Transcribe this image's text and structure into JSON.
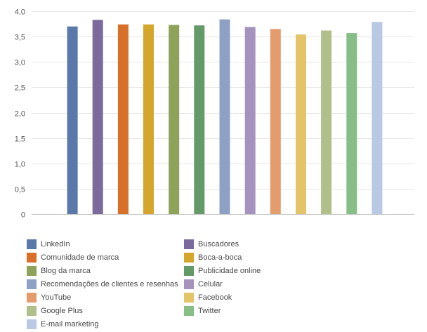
{
  "chart_data": {
    "type": "bar",
    "title": "",
    "xlabel": "",
    "ylabel": "",
    "ylim": [
      0,
      4
    ],
    "y_ticks": [
      "0",
      "0,5",
      "1,0",
      "1,5",
      "2,0",
      "2,5",
      "3,0",
      "3,5",
      "4,0"
    ],
    "y_tick_values": [
      0,
      0.5,
      1.0,
      1.5,
      2.0,
      2.5,
      3.0,
      3.5,
      4.0
    ],
    "grid": "horizontal",
    "legend_placement": "bottom",
    "series": [
      {
        "name": "LinkedIn",
        "value": 3.7,
        "color": "#5b79a8"
      },
      {
        "name": "Buscadores",
        "value": 3.83,
        "color": "#7b6b9c"
      },
      {
        "name": "Comunidade de marca",
        "value": 3.74,
        "color": "#d9702a"
      },
      {
        "name": "Boca-a-boca",
        "value": 3.74,
        "color": "#d4a62b"
      },
      {
        "name": "Blog da marca",
        "value": 3.73,
        "color": "#8ea25a"
      },
      {
        "name": "Publicidade online",
        "value": 3.72,
        "color": "#649a67"
      },
      {
        "name": "Recomendações de clientes e resenhas",
        "value": 3.84,
        "color": "#8ea0c4"
      },
      {
        "name": "Celular",
        "value": 3.69,
        "color": "#a593bd"
      },
      {
        "name": "YouTube",
        "value": 3.65,
        "color": "#e49c6c"
      },
      {
        "name": "Facebook",
        "value": 3.54,
        "color": "#e3c468"
      },
      {
        "name": "Google Plus",
        "value": 3.62,
        "color": "#b1bf8a"
      },
      {
        "name": "Twitter",
        "value": 3.57,
        "color": "#86be86"
      },
      {
        "name": "E-mail marketing",
        "value": 3.79,
        "color": "#b9c8e3"
      }
    ]
  }
}
